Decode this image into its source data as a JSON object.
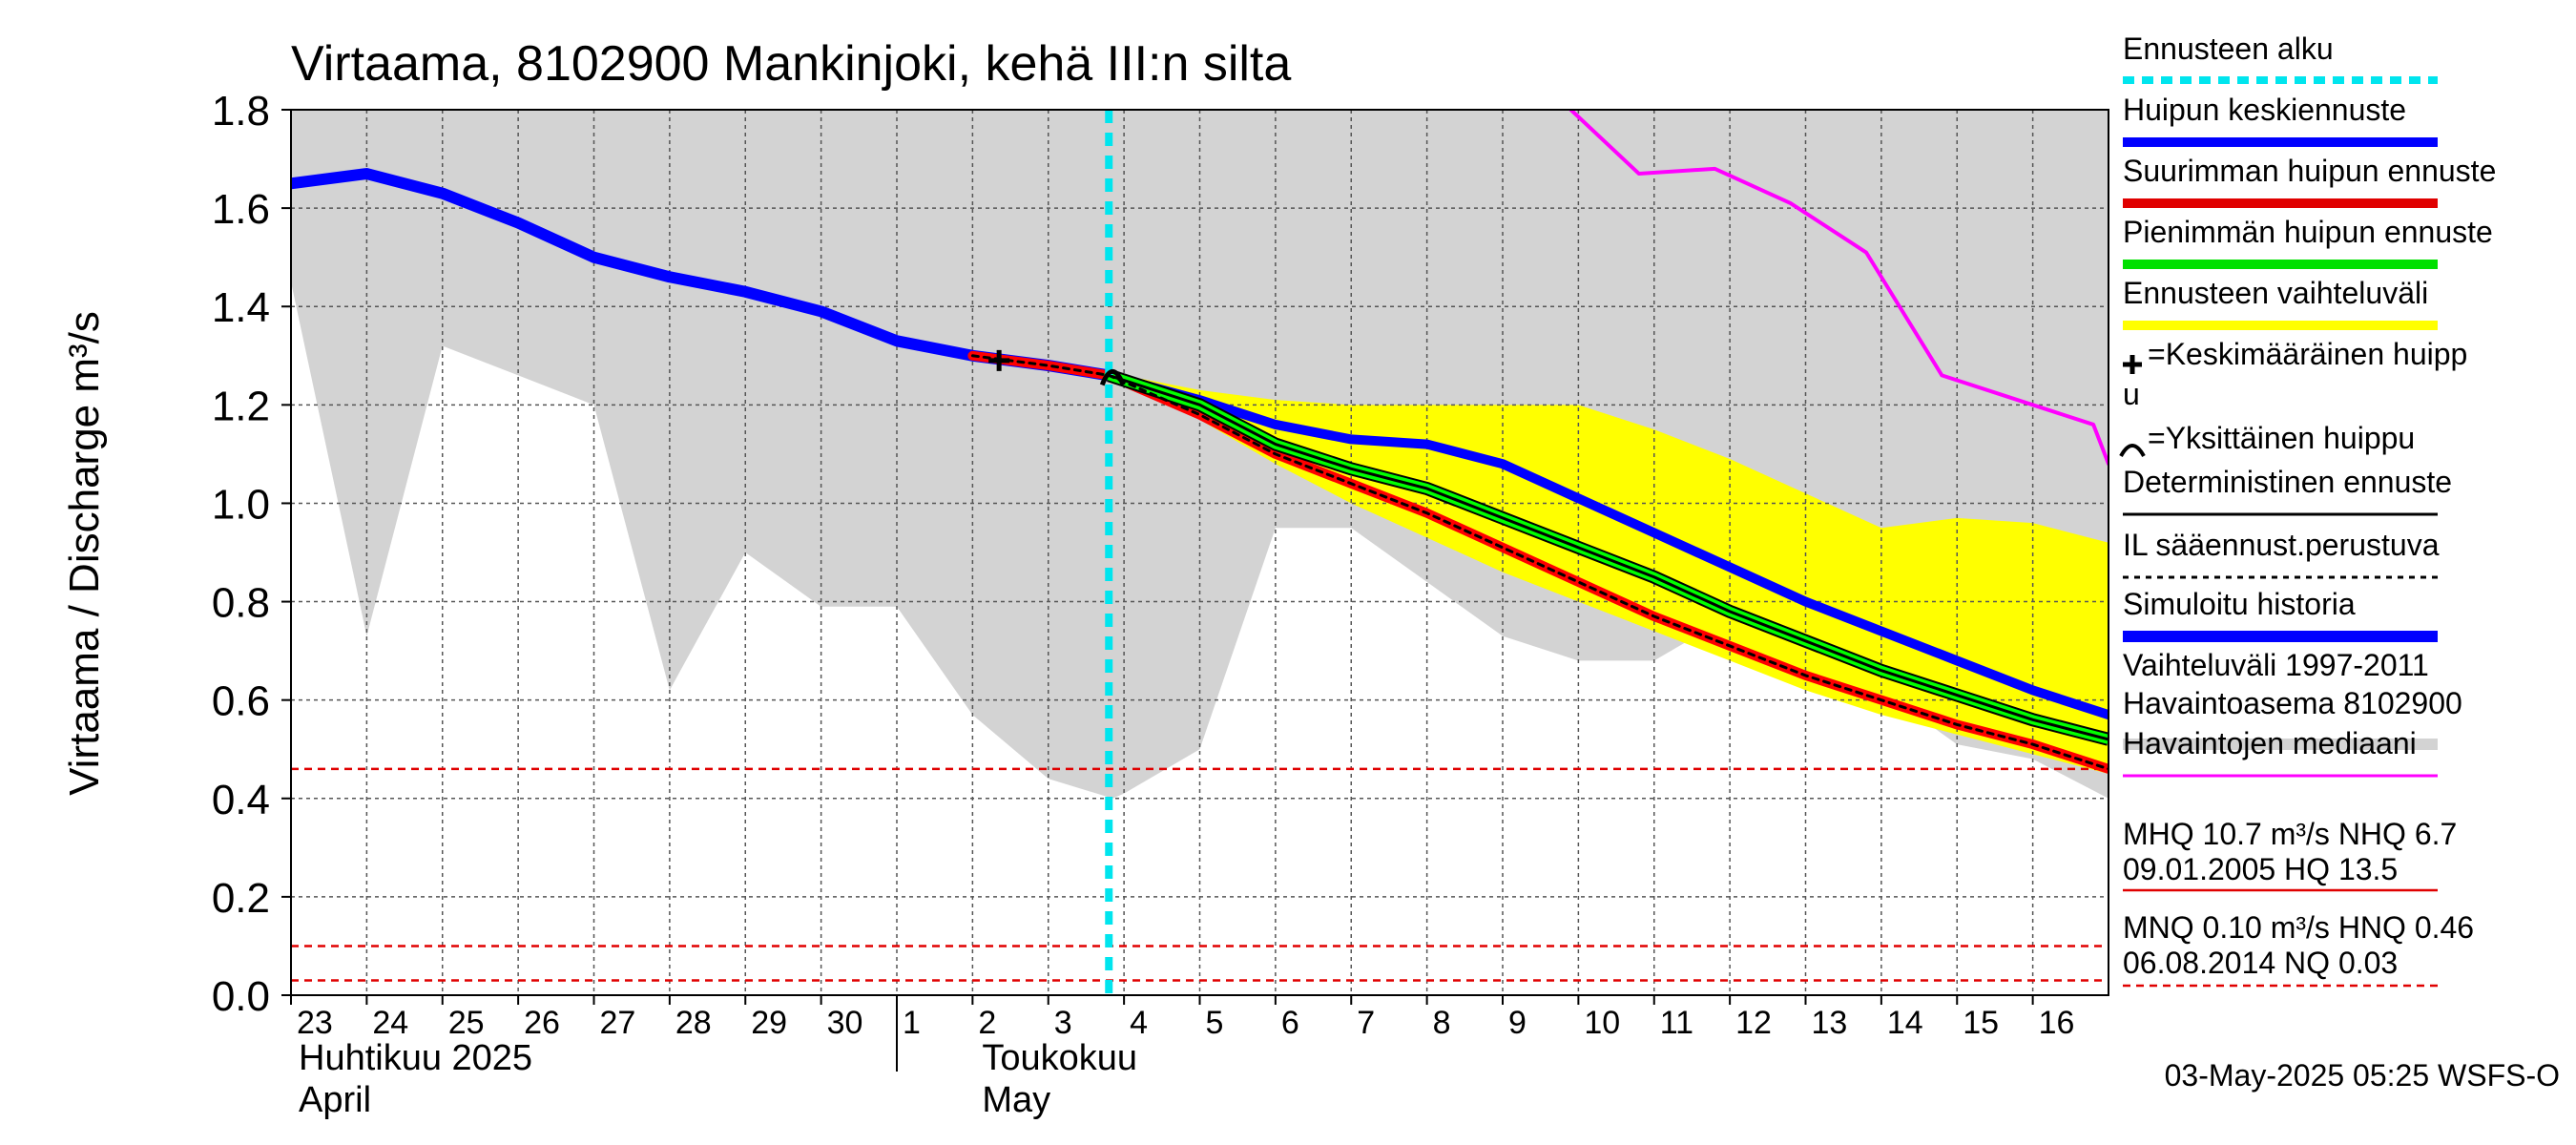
{
  "chart_data": {
    "type": "line",
    "title": "Virtaama, 8102900 Mankinjoki, kehä III:n silta",
    "ylabel": "Virtaama / Discharge    m³/s",
    "ylim": [
      0,
      1.8
    ],
    "yticks": [
      "0.0",
      "0.2",
      "0.4",
      "0.6",
      "0.8",
      "1.0",
      "1.2",
      "1.4",
      "1.6",
      "1.8"
    ],
    "x_days": [
      "23",
      "24",
      "25",
      "26",
      "27",
      "28",
      "29",
      "30",
      "1",
      "2",
      "3",
      "4",
      "5",
      "6",
      "7",
      "8",
      "9",
      "10",
      "11",
      "12",
      "13",
      "14",
      "15",
      "16"
    ],
    "month_labels": [
      {
        "fi": "Huhtikuu  2025",
        "en": "April"
      },
      {
        "fi": "Toukokuu",
        "en": "May"
      }
    ],
    "forecast_start_day": 10.8,
    "reference_lines": [
      0.46,
      0.1,
      0.03
    ],
    "series": [
      {
        "name": "Vaihteluväli 1997-2011 Havaintoasema 8102900",
        "kind": "band",
        "color": "#d3d3d3",
        "x": [
          0,
          1,
          2,
          3,
          4,
          5,
          6,
          7,
          8,
          9,
          10,
          10.85,
          11,
          12,
          13,
          14,
          15,
          16,
          17,
          18,
          19,
          20,
          21,
          22,
          23,
          24
        ],
        "upper": [
          1.8,
          1.8,
          1.8,
          1.8,
          1.8,
          1.8,
          1.8,
          1.8,
          1.8,
          1.8,
          1.8,
          1.8,
          1.8,
          1.8,
          1.8,
          1.8,
          1.8,
          1.8,
          1.8,
          1.8,
          1.8,
          1.8,
          1.8,
          1.8,
          1.8,
          1.8
        ],
        "lower": [
          1.45,
          0.73,
          1.32,
          1.26,
          1.2,
          0.62,
          0.9,
          0.79,
          0.79,
          0.57,
          0.44,
          0.4,
          0.41,
          0.5,
          0.95,
          0.95,
          0.84,
          0.73,
          0.68,
          0.68,
          0.77,
          0.7,
          0.62,
          0.51,
          0.48,
          0.4
        ]
      },
      {
        "name": "Ennusteen vaihteluväli",
        "kind": "band",
        "color": "#ffff00",
        "x": [
          10.85,
          11,
          12,
          13,
          14,
          15,
          16,
          17,
          18,
          19,
          20,
          21,
          22,
          23,
          24
        ],
        "upper": [
          1.26,
          1.26,
          1.23,
          1.21,
          1.2,
          1.2,
          1.2,
          1.2,
          1.15,
          1.09,
          1.02,
          0.95,
          0.97,
          0.96,
          0.92
        ],
        "lower": [
          1.26,
          1.25,
          1.17,
          1.08,
          1.0,
          0.93,
          0.86,
          0.8,
          0.74,
          0.68,
          0.62,
          0.57,
          0.53,
          0.49,
          0.45
        ]
      },
      {
        "name": "Havaintojen mediaani",
        "kind": "line",
        "color": "#ff00ff",
        "width": 4,
        "x": [
          16.9,
          17.8,
          18.8,
          19.8,
          20.8,
          21.8,
          22.8,
          23.8,
          24
        ],
        "y": [
          1.8,
          1.67,
          1.68,
          1.61,
          1.51,
          1.26,
          1.21,
          1.16,
          1.08
        ]
      },
      {
        "name": "Simuloitu historia",
        "kind": "line",
        "color": "#0000ff",
        "width": 12,
        "x": [
          0,
          1,
          2,
          3,
          4,
          5,
          6,
          7,
          8,
          9,
          10,
          10.8
        ],
        "y": [
          1.65,
          1.67,
          1.63,
          1.57,
          1.5,
          1.46,
          1.43,
          1.39,
          1.33,
          1.3,
          1.28,
          1.26
        ]
      },
      {
        "name": "Huipun keskiennuste",
        "kind": "line",
        "color": "#0000ff",
        "width": 10,
        "x": [
          10.8,
          12,
          13,
          14,
          15,
          16,
          17,
          18,
          19,
          20,
          21,
          22,
          23,
          24
        ],
        "y": [
          1.26,
          1.21,
          1.16,
          1.13,
          1.12,
          1.08,
          1.01,
          0.94,
          0.87,
          0.8,
          0.74,
          0.68,
          0.62,
          0.57
        ]
      },
      {
        "name": "Suurimman huipun ennuste",
        "kind": "line",
        "color": "#ff0000",
        "width": 10,
        "x": [
          9,
          10,
          10.8,
          12,
          13,
          14,
          15,
          16,
          17,
          18,
          19,
          20,
          21,
          22,
          23,
          24
        ],
        "y": [
          1.3,
          1.28,
          1.26,
          1.18,
          1.1,
          1.04,
          0.98,
          0.91,
          0.84,
          0.77,
          0.71,
          0.65,
          0.6,
          0.55,
          0.51,
          0.46
        ]
      },
      {
        "name": "Pienimmän huipun ennuste",
        "kind": "line",
        "color": "#00ff00",
        "width": 10,
        "x": [
          10.8,
          12,
          13,
          14,
          15,
          16,
          17,
          18,
          19,
          20,
          21,
          22,
          23,
          24
        ],
        "y": [
          1.26,
          1.2,
          1.12,
          1.07,
          1.03,
          0.97,
          0.91,
          0.85,
          0.78,
          0.72,
          0.66,
          0.61,
          0.56,
          0.52
        ]
      },
      {
        "name": "Deterministinen ennuste",
        "kind": "line",
        "color": "#000000",
        "width": 3,
        "x": [
          10.8,
          12,
          13,
          14,
          15,
          16,
          17,
          18,
          19,
          20,
          21,
          22,
          23,
          24
        ],
        "y": [
          1.26,
          1.2,
          1.12,
          1.07,
          1.03,
          0.97,
          0.91,
          0.85,
          0.78,
          0.72,
          0.66,
          0.61,
          0.56,
          0.52
        ]
      },
      {
        "name": "IL sääennust.perustuva",
        "kind": "dotted",
        "color": "#000000",
        "width": 3,
        "x": [
          9,
          10,
          10.8,
          12,
          13,
          14,
          15,
          16,
          17,
          18,
          19,
          20,
          21,
          22,
          23,
          24
        ],
        "y": [
          1.3,
          1.28,
          1.26,
          1.18,
          1.1,
          1.04,
          0.98,
          0.91,
          0.84,
          0.77,
          0.71,
          0.65,
          0.6,
          0.55,
          0.51,
          0.46
        ]
      }
    ],
    "markers": [
      {
        "name": "Keskimääräinen huippu",
        "symbol": "plus",
        "x": 9.35,
        "y": 1.29
      },
      {
        "name": "Yksittäinen huippu",
        "symbol": "arc",
        "x": 10.85,
        "y": 1.26
      }
    ]
  },
  "legend": {
    "items": [
      {
        "label": "Ennusteen alku",
        "color": "#00e5ee",
        "style": "dashed",
        "width": 8
      },
      {
        "label": "Huipun keskiennuste",
        "color": "#0000ff",
        "style": "solid",
        "width": 10
      },
      {
        "label": "Suurimman huipun ennuste",
        "color": "#e00000",
        "style": "solid",
        "width": 10
      },
      {
        "label": "Pienimmän huipun ennuste",
        "color": "#00e000",
        "style": "solid",
        "width": 10
      },
      {
        "label": "Ennusteen vaihteluväli",
        "color": "#ffff00",
        "style": "solid",
        "width": 10
      },
      {
        "label": "=Keskimääräinen huipp",
        "label2": "u",
        "color": "#000000",
        "style": "none",
        "symbol": "plus"
      },
      {
        "label": "=Yksittäinen huippu",
        "color": "#000000",
        "style": "none",
        "symbol": "arc"
      },
      {
        "label": "Deterministinen ennuste",
        "color": "#000000",
        "style": "solid",
        "width": 3
      },
      {
        "label": "IL sääennust.perustuva",
        "color": "#000000",
        "style": "dashed",
        "width": 3
      },
      {
        "label": "Simuloitu historia",
        "color": "#0000ff",
        "style": "solid",
        "width": 12
      },
      {
        "label": "Vaihteluväli 1997-2011",
        "label2": " Havaintoasema 8102900",
        "color": "#d3d3d3",
        "style": "solid",
        "width": 12
      },
      {
        "label": "Havaintojen mediaani",
        "color": "#ff00ff",
        "style": "solid",
        "width": 3
      }
    ],
    "stats": {
      "mhq_line1": "MHQ 10.7 m³/s NHQ  6.7",
      "mhq_line2": "09.01.2005 HQ 13.5",
      "mnq_line1": "MNQ 0.10 m³/s HNQ 0.46",
      "mnq_line2": "06.08.2014 NQ 0.03"
    }
  },
  "footer": "03-May-2025 05:25 WSFS-O"
}
